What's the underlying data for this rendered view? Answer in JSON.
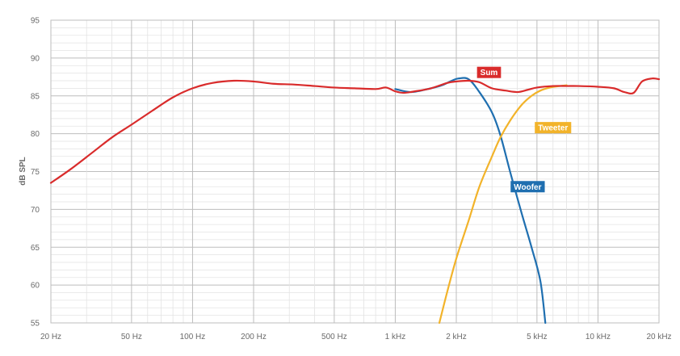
{
  "chart_data": {
    "type": "line",
    "title": "",
    "xlabel": "",
    "ylabel": "dB SPL",
    "x_scale": "log",
    "xlim": [
      20,
      20000
    ],
    "ylim": [
      55,
      95
    ],
    "grid": true,
    "x_tick_values": [
      20,
      50,
      100,
      200,
      500,
      1000,
      2000,
      5000,
      10000,
      20000
    ],
    "x_tick_labels": [
      "20 Hz",
      "50 Hz",
      "100 Hz",
      "200 Hz",
      "500 Hz",
      "1 kHz",
      "2 kHz",
      "5 kHz",
      "10 kHz",
      "20 kHz"
    ],
    "y_ticks": [
      55,
      60,
      65,
      70,
      75,
      80,
      85,
      90,
      95
    ],
    "series": [
      {
        "name": "Woofer",
        "color": "#1f6fb0",
        "label_color": "#1f6fb0",
        "label_at": [
          4500,
          73.0
        ],
        "x": [
          1000,
          1200,
          1500,
          1700,
          1900,
          2050,
          2300,
          2600,
          3000,
          3300,
          3700,
          4200,
          4700,
          5200,
          5500
        ],
        "y": [
          85.9,
          85.5,
          86.0,
          86.4,
          87.0,
          87.3,
          87.2,
          85.5,
          82.8,
          79.8,
          74.8,
          69.5,
          65.0,
          60.5,
          55.0
        ]
      },
      {
        "name": "Tweeter",
        "color": "#f2b32a",
        "label_color": "#f2b32a",
        "label_at": [
          6000,
          80.8
        ],
        "x": [
          1650,
          1800,
          2000,
          2300,
          2600,
          3000,
          3300,
          3700,
          4200,
          4700,
          5200,
          5800,
          6500,
          7000
        ],
        "y": [
          55.0,
          59.0,
          63.5,
          68.5,
          73.0,
          77.0,
          79.5,
          81.8,
          83.8,
          85.0,
          85.7,
          86.1,
          86.3,
          86.4
        ]
      },
      {
        "name": "Sum",
        "color": "#d92b2b",
        "label_color": "#d92b2b",
        "label_at": [
          2900,
          88.1
        ],
        "x": [
          20,
          25,
          32,
          40,
          50,
          63,
          80,
          100,
          125,
          160,
          200,
          250,
          315,
          400,
          500,
          630,
          800,
          900,
          1000,
          1100,
          1250,
          1500,
          1800,
          2000,
          2300,
          2600,
          3000,
          3500,
          4000,
          4500,
          5000,
          6000,
          7000,
          8000,
          10000,
          12000,
          13500,
          15000,
          16500,
          18500,
          20000
        ],
        "y": [
          73.5,
          75.3,
          77.5,
          79.5,
          81.2,
          83.0,
          84.8,
          86.0,
          86.7,
          87.0,
          86.9,
          86.6,
          86.5,
          86.3,
          86.1,
          86.0,
          85.9,
          86.1,
          85.6,
          85.4,
          85.6,
          86.0,
          86.7,
          86.9,
          87.0,
          86.8,
          86.0,
          85.7,
          85.5,
          85.8,
          86.1,
          86.3,
          86.3,
          86.3,
          86.2,
          86.0,
          85.5,
          85.4,
          86.9,
          87.3,
          87.2
        ]
      }
    ]
  }
}
